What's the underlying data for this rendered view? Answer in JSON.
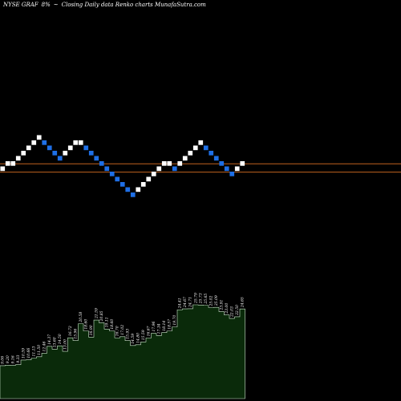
{
  "header": {
    "ticker": "NYSE GRAF",
    "change": "8%",
    "arrow": "~",
    "caption": "Closing Daily data Renko charts MunafaSutra.com"
  },
  "colors": {
    "background": "#000000",
    "brick_up": "#ffffff",
    "brick_down": "#1e6fe6",
    "reference_line": "#c0621e",
    "volume_fill": "#0a2a0a",
    "volume_edge": "#cfeccf",
    "volume_label": "#ffffff"
  },
  "chart_data": {
    "type": "renko",
    "brick_levels": [
      0,
      1,
      1,
      2,
      3,
      4,
      5,
      6,
      5,
      4,
      3,
      2,
      3,
      4,
      5,
      5,
      4,
      3,
      2,
      1,
      0,
      -1,
      -2,
      -3,
      -4,
      -5,
      -4,
      -3,
      -2,
      -1,
      0,
      1,
      1,
      0,
      1,
      2,
      3,
      4,
      5,
      4,
      3,
      2,
      1,
      0,
      -1,
      0,
      1
    ],
    "brick_direction": [
      "up",
      "up",
      "up",
      "up",
      "up",
      "up",
      "up",
      "up",
      "down",
      "down",
      "down",
      "down",
      "up",
      "up",
      "up",
      "up",
      "down",
      "down",
      "down",
      "down",
      "down",
      "down",
      "down",
      "down",
      "down",
      "down",
      "up",
      "up",
      "up",
      "up",
      "up",
      "up",
      "up",
      "down",
      "up",
      "up",
      "up",
      "up",
      "up",
      "down",
      "down",
      "down",
      "down",
      "down",
      "down",
      "up",
      "up"
    ],
    "reference_levels": [
      1,
      -0.6
    ],
    "volume_labels": [
      "9.06",
      "9.20",
      "9.16",
      "9.33",
      "10.59",
      "10.66",
      "11.13",
      "11.50",
      "12.46",
      "14.37",
      "13.60",
      "14.50",
      "13.00",
      "16.72",
      "15.96",
      "20.58",
      "18.60",
      "16.90",
      "21.59",
      "20.85",
      "19.11",
      "18.60",
      "16.70",
      "17.02",
      "15.93",
      "14.59",
      "14.80",
      "15.59",
      "16.67",
      "17.96",
      "17.34",
      "18.14",
      "18.57",
      "19.70",
      "24.41",
      "24.67",
      "24.71",
      "25.79",
      "25.73",
      "25.65",
      "25.02",
      "25.09",
      "23.91",
      "23.00",
      "22.03",
      "22.50",
      "24.65"
    ]
  }
}
